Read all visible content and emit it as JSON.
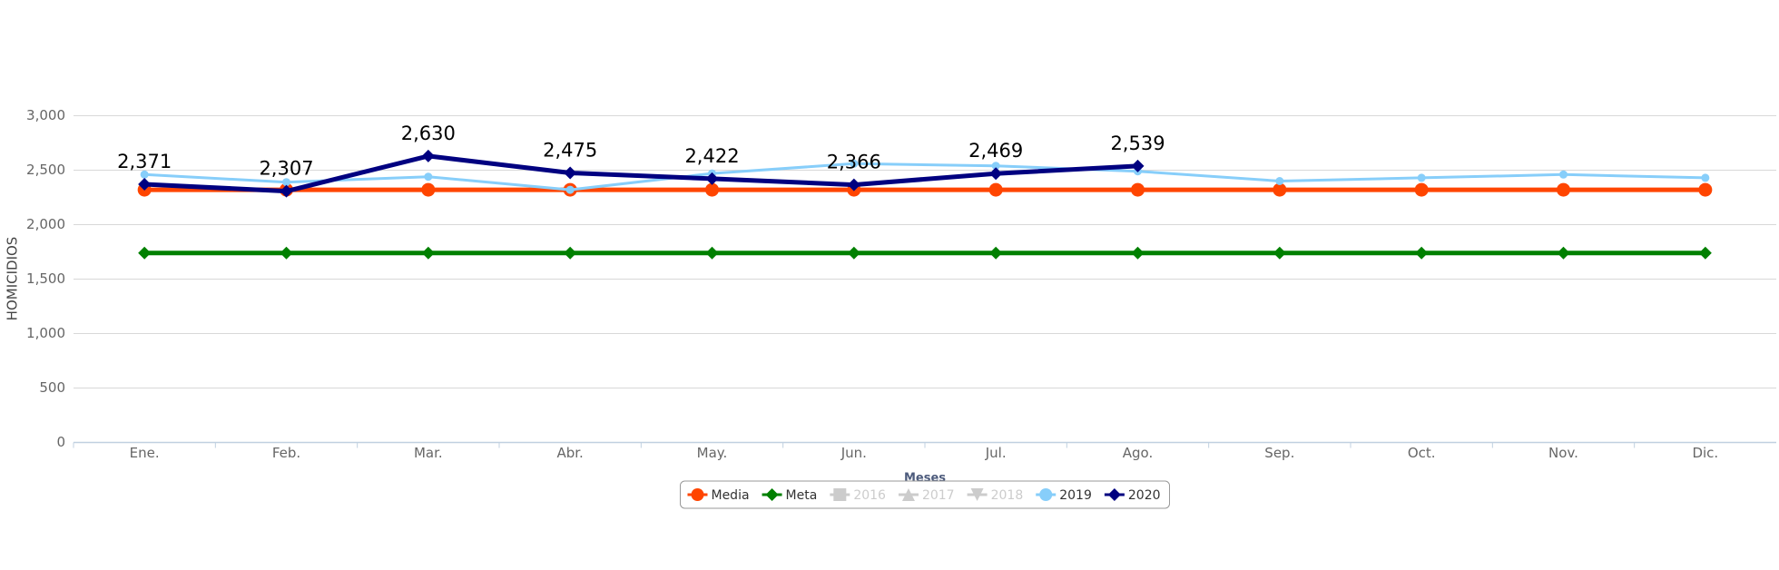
{
  "chart_data": {
    "type": "line",
    "y_label": "HOMICIDIOS",
    "x_label": "Meses",
    "categories": [
      "Ene.",
      "Feb.",
      "Mar.",
      "Abr.",
      "May.",
      "Jun.",
      "Jul.",
      "Ago.",
      "Sep.",
      "Oct.",
      "Nov.",
      "Dic."
    ],
    "ylim": [
      0,
      3000
    ],
    "yticks": [
      0,
      500,
      {
        "value": 1000,
        "label": "1,000"
      },
      {
        "value": 1500,
        "label": "1,500"
      },
      {
        "value": 2000,
        "label": "2,000"
      },
      {
        "value": 2500,
        "label": "2,500"
      },
      {
        "value": 3000,
        "label": "3,000"
      }
    ],
    "grid": true,
    "legend": "bottom",
    "series": [
      {
        "name": "Media",
        "color": "#ff4500",
        "marker": "circle",
        "visible": true,
        "values": [
          2320,
          2320,
          2320,
          2320,
          2320,
          2320,
          2320,
          2320,
          2320,
          2320,
          2320,
          2320
        ]
      },
      {
        "name": "Meta",
        "color": "#008000",
        "marker": "diamond",
        "visible": true,
        "values": [
          1740,
          1740,
          1740,
          1740,
          1740,
          1740,
          1740,
          1740,
          1740,
          1740,
          1740,
          1740
        ]
      },
      {
        "name": "2016",
        "color": "#cccccc",
        "marker": "square",
        "visible": false,
        "values": [
          null,
          null,
          null,
          null,
          null,
          null,
          null,
          null,
          null,
          null,
          null,
          null
        ]
      },
      {
        "name": "2017",
        "color": "#cccccc",
        "marker": "triangle",
        "visible": false,
        "values": [
          null,
          null,
          null,
          null,
          null,
          null,
          null,
          null,
          null,
          null,
          null,
          null
        ]
      },
      {
        "name": "2018",
        "color": "#cccccc",
        "marker": "triangle-down",
        "visible": false,
        "values": [
          null,
          null,
          null,
          null,
          null,
          null,
          null,
          null,
          null,
          null,
          null,
          null
        ]
      },
      {
        "name": "2019",
        "color": "#87cefa",
        "marker": "circle",
        "visible": true,
        "values": [
          2460,
          2390,
          2440,
          2320,
          2470,
          2560,
          2540,
          2490,
          2400,
          2430,
          2460,
          2430
        ]
      },
      {
        "name": "2020",
        "color": "#000080",
        "marker": "diamond",
        "visible": true,
        "values": [
          2371,
          2307,
          2630,
          2475,
          2422,
          2366,
          2469,
          2539,
          null,
          null,
          null,
          null
        ],
        "value_labels": [
          "2,371",
          "2,307",
          "2,630",
          "2,475",
          "2,422",
          "2,366",
          "2,469",
          "2,539",
          null,
          null,
          null,
          null
        ]
      }
    ]
  }
}
